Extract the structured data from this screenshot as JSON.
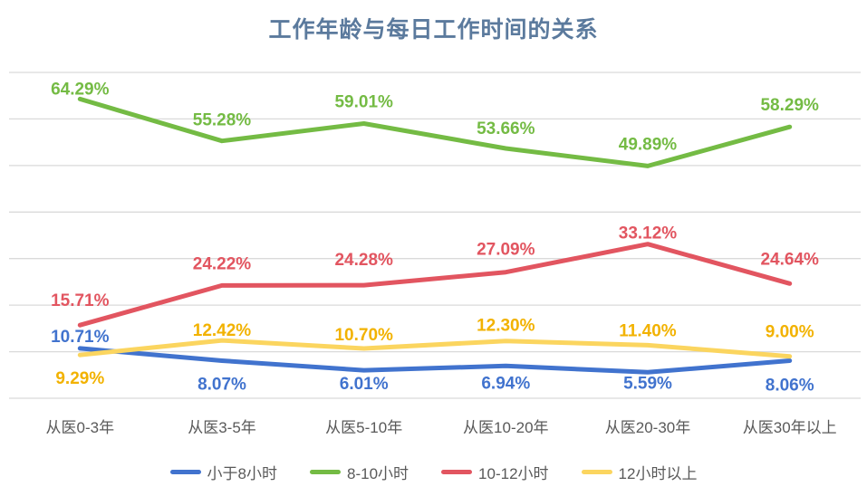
{
  "chart_data": {
    "type": "line",
    "title": "工作年龄与每日工作时间的关系",
    "categories": [
      "从医0-3年",
      "从医3-5年",
      "从医5-10年",
      "从医10-20年",
      "从医20-30年",
      "从医30年以上"
    ],
    "series": [
      {
        "name": "小于8小时",
        "color": "#4173CE",
        "label_color": "#4173CE",
        "values": [
          10.71,
          8.07,
          6.01,
          6.94,
          5.59,
          8.06
        ],
        "label_dy": [
          -7,
          32,
          21,
          25,
          18,
          33
        ]
      },
      {
        "name": "8-10小时",
        "color": "#74BB44",
        "label_color": "#74BB44",
        "values": [
          64.29,
          55.28,
          59.01,
          53.66,
          49.89,
          58.29
        ],
        "label_dy": [
          -5,
          -17,
          -18,
          -16,
          -18,
          -18
        ]
      },
      {
        "name": "10-12小时",
        "color": "#E25560",
        "label_color": "#E25560",
        "values": [
          15.71,
          24.22,
          24.28,
          27.09,
          33.12,
          24.64
        ],
        "label_dy": [
          -21,
          -18,
          -22,
          -19,
          -6,
          -21
        ]
      },
      {
        "name": "12小时以上",
        "color": "#FBD55F",
        "label_color": "#F2B200",
        "values": [
          9.29,
          12.42,
          10.7,
          12.3,
          11.4,
          9.0
        ],
        "label_dy": [
          32,
          -5,
          -9,
          -11,
          -10,
          -21
        ]
      }
    ],
    "label_format": "0.00%",
    "xlabel": "",
    "ylabel": "",
    "ylim": [
      0,
      70
    ],
    "y_gridline_step": 10,
    "grid": true,
    "y_axis_tick_labels_visible": false,
    "legend_position": "bottom",
    "colors": {
      "title": "#5B7A9D",
      "grid": "#DADADA",
      "axis_label": "#595959",
      "legend_label": "#595959",
      "background": "#FFFFFF"
    }
  }
}
